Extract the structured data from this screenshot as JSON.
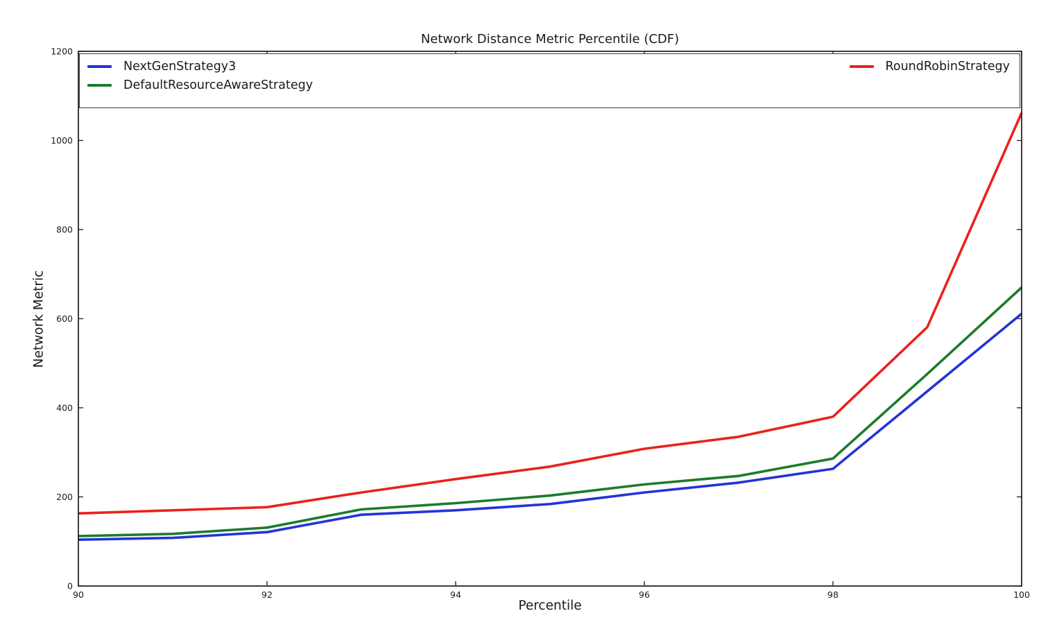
{
  "chart_data": {
    "type": "line",
    "title": "Network Distance Metric Percentile (CDF)",
    "xlabel": "Percentile",
    "ylabel": "Network Metric",
    "xlim": [
      90,
      100
    ],
    "ylim": [
      0,
      1200
    ],
    "xticks": [
      90,
      92,
      94,
      96,
      98,
      100
    ],
    "yticks": [
      0,
      200,
      400,
      600,
      800,
      1000,
      1200
    ],
    "grid": false,
    "tick_direction": "in",
    "legend": {
      "location": "upper center inside plot",
      "columns": 2,
      "expanded_full_width": true
    },
    "x": [
      90,
      91,
      92,
      93,
      94,
      95,
      96,
      97,
      98,
      99,
      100
    ],
    "series": [
      {
        "name": "NextGenStrategy3",
        "color": "#2433d8",
        "values": [
          104,
          108,
          121,
          160,
          170,
          184,
          210,
          232,
          263,
          437,
          611
        ]
      },
      {
        "name": "DefaultResourceAwareStrategy",
        "color": "#1b7c2c",
        "values": [
          112,
          117,
          131,
          172,
          186,
          203,
          228,
          247,
          286,
          476,
          670
        ]
      },
      {
        "name": "RoundRobinStrategy",
        "color": "#ea221c",
        "values": [
          163,
          170,
          177,
          210,
          240,
          268,
          308,
          335,
          380,
          581,
          1062
        ]
      }
    ]
  }
}
